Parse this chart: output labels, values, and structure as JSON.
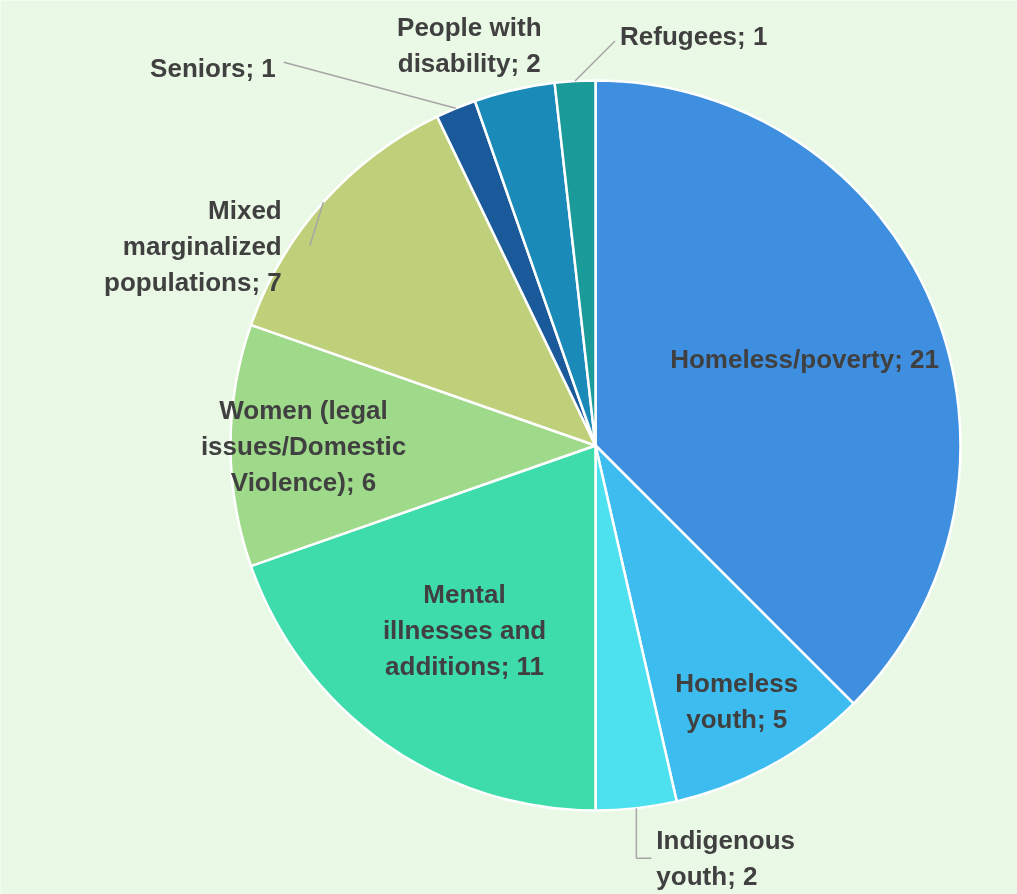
{
  "chart_data": {
    "type": "pie",
    "categories": [
      "Homeless/poverty; 21",
      "Homeless youth; 5",
      "Indigenous youth; 2",
      "Mental illnesses and additions; 11",
      "Women (legal issues/Domestic Violence); 6",
      "Mixed marginalized populations; 7",
      "Seniors; 1",
      "People with disability; 2",
      "Refugees; 1"
    ],
    "values": [
      21,
      5,
      2,
      11,
      6,
      7,
      1,
      2,
      1
    ],
    "colors": [
      "#3f8fe0",
      "#3dbcef",
      "#4de0ef",
      "#3ddcaa",
      "#9fd98a",
      "#bfd07a",
      "#1a5a9a",
      "#1a8ab8",
      "#1a9a98"
    ]
  }
}
